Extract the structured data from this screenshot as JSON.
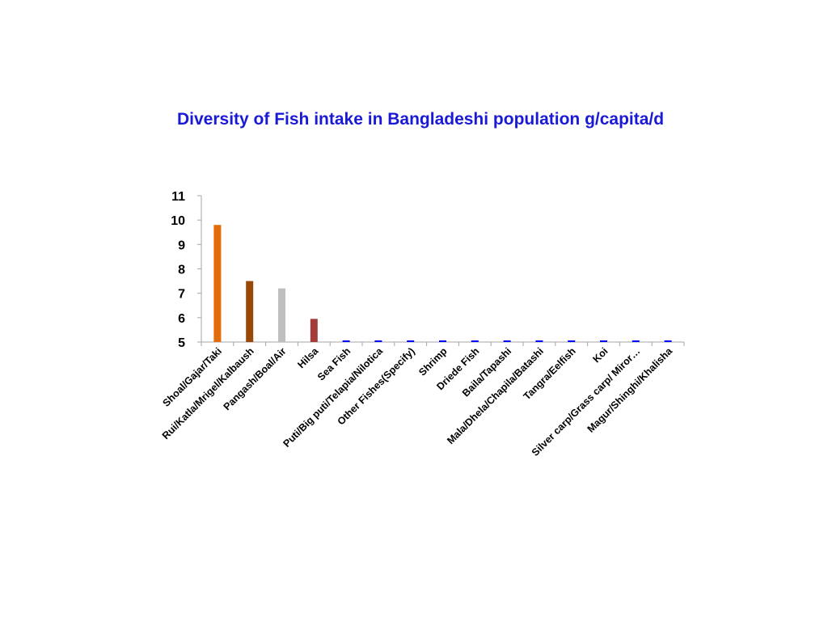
{
  "chart_data": {
    "type": "bar",
    "title": "Diversity of Fish intake in Bangladeshi population g/capita/d",
    "xlabel": "",
    "ylabel": "",
    "ylim": [
      5,
      11
    ],
    "yticks": [
      "5",
      "6",
      "7",
      "8",
      "9",
      "10",
      "11"
    ],
    "grid": false,
    "legend": "none",
    "categories": [
      "Shoal/Gajar/Taki",
      "Rui/Katla/Mrigel/Kalbaush",
      "Pangash/Boal/Air",
      "Hilsa",
      "Sea Fish",
      "Puti/Big puti/Telapia/Nilotica",
      "Other Fishes(Specify)",
      "Shrimp",
      "Driede Fish",
      "Baila/Tapashi",
      "Mala/Dhela/Chapila/Batashi",
      "Tangra/Eelfish",
      "Koi",
      "Silver carp/Grass carp/ Miror…",
      "Magur/Shinghi/Khalisha"
    ],
    "values": [
      9.8,
      7.5,
      7.2,
      5.95,
      5.0,
      5.0,
      5.0,
      5.0,
      5.0,
      5.0,
      5.0,
      5.0,
      5.0,
      5.0,
      5.0
    ],
    "colors": [
      "#e36c0a",
      "#984807",
      "#bfbfbf",
      "#a33b3b",
      "#0000ff",
      "#0000ff",
      "#0000ff",
      "#0000ff",
      "#0000ff",
      "#0000ff",
      "#0000ff",
      "#0000ff",
      "#0000ff",
      "#0000ff",
      "#0000ff"
    ],
    "axis_color": "#a6a6a6",
    "title_color": "#1a1ad6"
  }
}
